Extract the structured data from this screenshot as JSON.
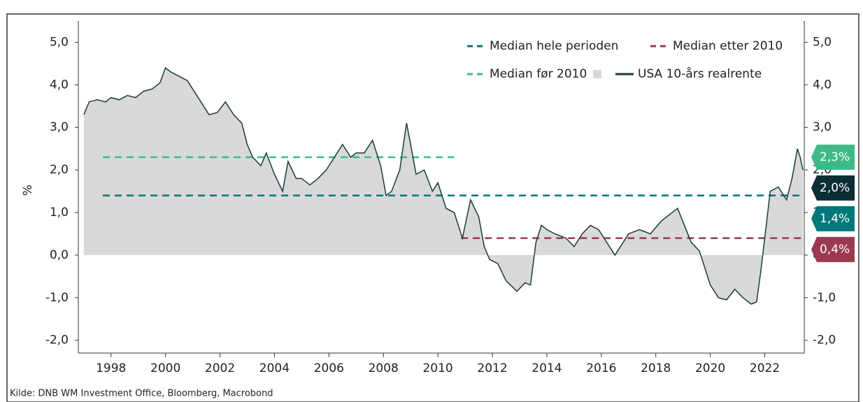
{
  "chart_data": {
    "type": "line",
    "y_label": "%",
    "source": "Kilde: DNB WM Investment Office, Bloomberg, Macrobond",
    "xlim": [
      1996.8,
      2023.45
    ],
    "xticks": [
      1998,
      2000,
      2002,
      2004,
      2006,
      2008,
      2010,
      2012,
      2014,
      2016,
      2018,
      2020,
      2022
    ],
    "ylim": [
      -2.3,
      5.5
    ],
    "yticks": [
      {
        "value": -2,
        "label": "-2,0"
      },
      {
        "value": -1,
        "label": "-1,0"
      },
      {
        "value": 0,
        "label": "0,0"
      },
      {
        "value": 1,
        "label": "1,0"
      },
      {
        "value": 2,
        "label": "2,0"
      },
      {
        "value": 3,
        "label": "3,0"
      },
      {
        "value": 4,
        "label": "4,0"
      },
      {
        "value": 5,
        "label": "5,0"
      }
    ],
    "y2lim": [
      -2.3,
      5.5
    ],
    "y2ticks": [
      {
        "value": -2,
        "label": "-2,0"
      },
      {
        "value": -1,
        "label": "-1,0"
      },
      {
        "value": 0,
        "label": "0,0"
      },
      {
        "value": 1,
        "label": "1,0"
      },
      {
        "value": 2,
        "label": "2,0"
      },
      {
        "value": 3,
        "label": "3,0"
      },
      {
        "value": 4,
        "label": "4,0"
      },
      {
        "value": 5,
        "label": "5,0"
      }
    ],
    "area_color": "#d9d9d9",
    "series": [
      {
        "name": "Median hele perioden",
        "color": "#00787a",
        "dashed": true,
        "x": [
          1997.7,
          2023.4
        ],
        "values": [
          1.4,
          1.4
        ]
      },
      {
        "name": "Median etter 2010",
        "color": "#9b3a4f",
        "dashed": true,
        "x": [
          2010.85,
          2023.4
        ],
        "values": [
          0.4,
          0.4
        ]
      },
      {
        "name": "Median før 2010",
        "color": "#3dbb87",
        "dashed": true,
        "x": [
          1997.7,
          2010.6
        ],
        "values": [
          2.3,
          2.3
        ]
      },
      {
        "name": "USA 10-års realrente",
        "color": "#1a3a3f",
        "dashed": false,
        "area": true,
        "x": [
          1997.0,
          1997.2,
          1997.5,
          1997.8,
          1998.0,
          1998.3,
          1998.6,
          1998.9,
          1999.2,
          1999.5,
          1999.8,
          2000.0,
          2000.2,
          2000.5,
          2000.8,
          2001.0,
          2001.3,
          2001.6,
          2001.9,
          2002.2,
          2002.5,
          2002.8,
          2003.0,
          2003.2,
          2003.5,
          2003.7,
          2004.0,
          2004.3,
          2004.5,
          2004.8,
          2005.0,
          2005.3,
          2005.6,
          2005.9,
          2006.2,
          2006.5,
          2006.8,
          2007.0,
          2007.3,
          2007.6,
          2007.9,
          2008.1,
          2008.3,
          2008.6,
          2008.85,
          2009.0,
          2009.2,
          2009.5,
          2009.8,
          2010.0,
          2010.3,
          2010.6,
          2010.9,
          2011.2,
          2011.5,
          2011.7,
          2011.9,
          2012.2,
          2012.5,
          2012.9,
          2013.2,
          2013.4,
          2013.6,
          2013.8,
          2014.0,
          2014.3,
          2014.7,
          2015.0,
          2015.3,
          2015.6,
          2015.9,
          2016.2,
          2016.5,
          2016.8,
          2017.0,
          2017.4,
          2017.8,
          2018.2,
          2018.8,
          2019.3,
          2019.6,
          2019.8,
          2020.0,
          2020.3,
          2020.6,
          2020.9,
          2021.2,
          2021.5,
          2021.7,
          2021.85,
          2022.0,
          2022.2,
          2022.5,
          2022.8,
          2023.0,
          2023.2,
          2023.3,
          2023.4
        ],
        "values": [
          3.3,
          3.6,
          3.65,
          3.6,
          3.7,
          3.65,
          3.75,
          3.7,
          3.85,
          3.9,
          4.05,
          4.4,
          4.3,
          4.2,
          4.1,
          3.9,
          3.6,
          3.3,
          3.35,
          3.6,
          3.3,
          3.1,
          2.6,
          2.3,
          2.1,
          2.4,
          1.9,
          1.5,
          2.2,
          1.8,
          1.8,
          1.65,
          1.8,
          2.0,
          2.3,
          2.6,
          2.3,
          2.4,
          2.4,
          2.7,
          2.1,
          1.4,
          1.5,
          2.0,
          3.1,
          2.6,
          1.9,
          2.0,
          1.5,
          1.7,
          1.1,
          1.0,
          0.4,
          1.3,
          0.9,
          0.2,
          -0.1,
          -0.2,
          -0.6,
          -0.85,
          -0.65,
          -0.7,
          0.3,
          0.7,
          0.6,
          0.5,
          0.4,
          0.2,
          0.5,
          0.7,
          0.6,
          0.3,
          0.0,
          0.3,
          0.5,
          0.6,
          0.5,
          0.8,
          1.1,
          0.3,
          0.1,
          -0.3,
          -0.7,
          -1.0,
          -1.05,
          -0.8,
          -1.0,
          -1.15,
          -1.1,
          -0.4,
          0.4,
          1.5,
          1.6,
          1.3,
          1.8,
          2.5,
          2.3,
          2.0
        ]
      }
    ],
    "end_labels": [
      {
        "value": 2.3,
        "label": "2,3%",
        "color": "#3dbb87"
      },
      {
        "value": 2.0,
        "label": "2,0%",
        "color": "#0b2e33"
      },
      {
        "value": 1.4,
        "label": "1,4%",
        "color": "#00787a"
      },
      {
        "value": 0.4,
        "label": "0,4%",
        "color": "#9b3a4f"
      }
    ]
  }
}
